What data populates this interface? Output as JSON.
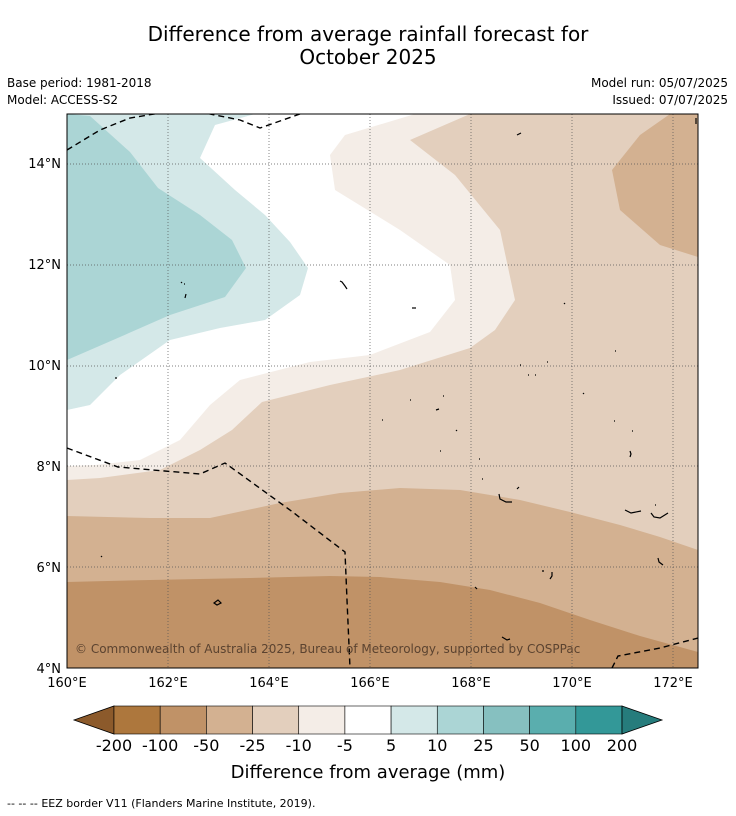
{
  "title": {
    "line1": "Difference from average rainfall forecast for",
    "line2": "October 2025"
  },
  "meta": {
    "base_period": "Base period: 1981-2018",
    "model": "Model: ACCESS-S2",
    "model_run": "Model run: 05/07/2025",
    "issued": "Issued: 07/07/2025"
  },
  "map": {
    "copyright": "© Commonwealth of Australia 2025, Bureau of Meteorology, supported by COSPPac",
    "lat_labels": [
      "14°N",
      "12°N",
      "10°N",
      "8°N",
      "6°N",
      "4°N"
    ],
    "lon_labels": [
      "160°E",
      "162°E",
      "164°E",
      "166°E",
      "168°E",
      "170°E",
      "172°E"
    ],
    "lat_range": [
      4,
      15
    ],
    "lon_range": [
      160,
      172.5
    ]
  },
  "colorbar": {
    "label": "Difference from average (mm)",
    "ticks": [
      "-200",
      "-100",
      "-50",
      "-25",
      "-10",
      "-5",
      "5",
      "10",
      "25",
      "50",
      "100",
      "200"
    ],
    "colors": [
      "#8c5a2b",
      "#ad773d",
      "#c09267",
      "#d3b191",
      "#e3cfbd",
      "#f4ede7",
      "#ffffff",
      "#d4e8e8",
      "#abd5d5",
      "#86c0c0",
      "#5aaeae",
      "#339898",
      "#267c7c"
    ],
    "extend_low_color": "#8c5a2b",
    "extend_high_color": "#267c7c"
  },
  "footer": {
    "legend_symbol": "-- -- --",
    "legend_text": "EEZ border V11 (Flanders Marine Institute, 2019)."
  }
}
